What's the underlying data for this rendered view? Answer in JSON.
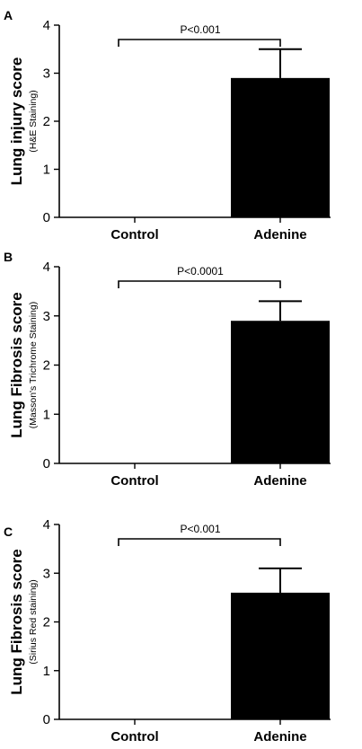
{
  "chart_data": [
    {
      "type": "bar",
      "panel": "A",
      "title": "",
      "ylabel": "Lung injury score",
      "ylabel_sub": "(H&E Staining)",
      "xlabel": "",
      "categories": [
        "Control",
        "Adenine"
      ],
      "values": [
        0,
        2.9
      ],
      "error": [
        0,
        0.6
      ],
      "ylim": [
        0,
        4
      ],
      "yticks": [
        "0",
        "1",
        "2",
        "3",
        "4"
      ],
      "annotation": "P<0.001",
      "colors": {
        "bar": "#000000"
      }
    },
    {
      "type": "bar",
      "panel": "B",
      "title": "",
      "ylabel": "Lung Fibrosis score",
      "ylabel_sub": "(Masson's Trichrome Staining)",
      "xlabel": "",
      "categories": [
        "Control",
        "Adenine"
      ],
      "values": [
        0,
        2.9
      ],
      "error": [
        0,
        0.4
      ],
      "ylim": [
        0,
        4
      ],
      "yticks": [
        "0",
        "1",
        "2",
        "3",
        "4"
      ],
      "annotation": "P<0.0001",
      "colors": {
        "bar": "#000000"
      }
    },
    {
      "type": "bar",
      "panel": "C",
      "title": "",
      "ylabel": "Lung Fibrosis score",
      "ylabel_sub": "(Sirius Red staining)",
      "xlabel": "",
      "categories": [
        "Control",
        "Adenine"
      ],
      "values": [
        0,
        2.6
      ],
      "error": [
        0,
        0.5
      ],
      "ylim": [
        0,
        4
      ],
      "yticks": [
        "0",
        "1",
        "2",
        "3",
        "4"
      ],
      "annotation": "P<0.001",
      "colors": {
        "bar": "#000000"
      }
    }
  ]
}
